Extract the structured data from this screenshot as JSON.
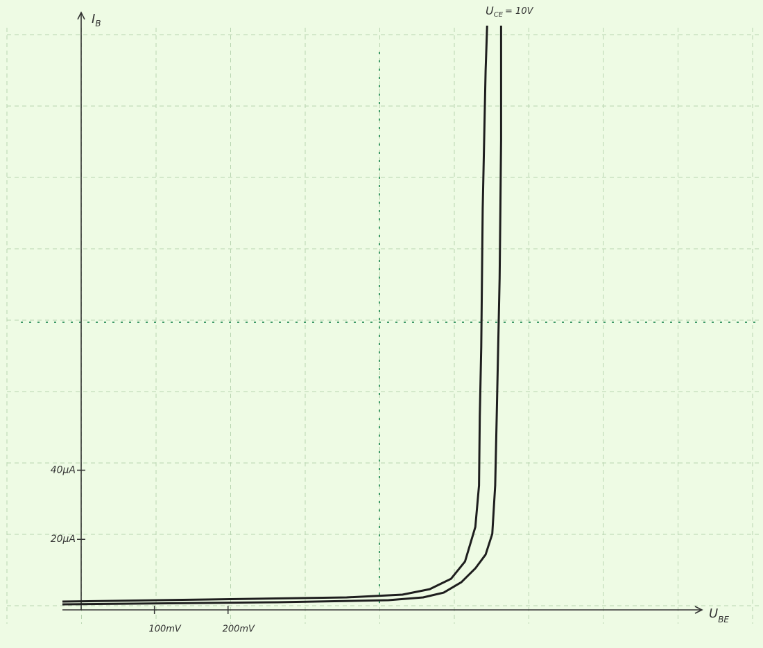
{
  "chart_data": {
    "type": "line",
    "x_label": {
      "symbol": "U",
      "subscript": "BE"
    },
    "y_label": {
      "symbol": "I",
      "subscript": "B"
    },
    "annotation": {
      "symbol": "U",
      "subscript": "CE",
      "text": "= 10V"
    },
    "xlim": [
      -25,
      842
    ],
    "ylim": [
      0,
      172
    ],
    "xticks": [
      {
        "value": 100,
        "label": "100mV"
      },
      {
        "value": 200,
        "label": "200mV"
      }
    ],
    "yticks": [
      {
        "value": 20,
        "label": "20µA"
      },
      {
        "value": 40,
        "label": "40µA"
      }
    ],
    "color": "#1e1e1e",
    "series": [
      {
        "x": [
          -25,
          173,
          361,
          437,
          474,
          503,
          522,
          536,
          541,
          542,
          544,
          546,
          550,
          552
        ],
        "values": [
          2,
          2.6,
          3.2,
          4,
          5.6,
          8.6,
          13.6,
          23.6,
          35.6,
          55.6,
          75.6,
          115.6,
          155.6,
          168.6
        ]
      },
      {
        "x": [
          -25,
          267,
          418,
          465,
          493,
          517,
          536,
          550,
          559,
          563,
          565,
          567,
          569,
          570,
          571,
          571,
          571
        ],
        "values": [
          1.2,
          1.8,
          2.4,
          3.2,
          4.6,
          7.6,
          11.6,
          15.6,
          21.6,
          35.6,
          55.6,
          75.6,
          95.6,
          115.6,
          135.6,
          155.6,
          168.6
        ]
      }
    ]
  }
}
